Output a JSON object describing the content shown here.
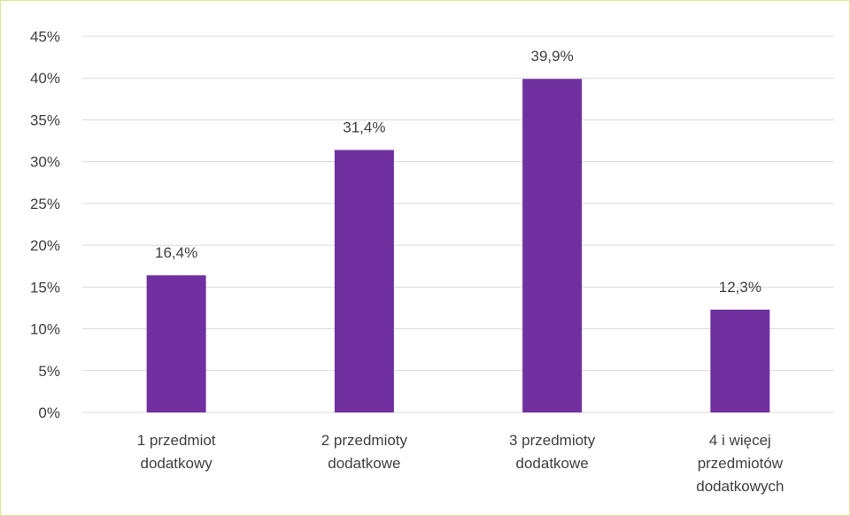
{
  "chart_data": {
    "type": "bar",
    "categories": [
      [
        "1 przedmiot",
        "dodatkowy"
      ],
      [
        "2 przedmioty",
        "dodatkowe"
      ],
      [
        "3 przedmioty",
        "dodatkowe"
      ],
      [
        "4 i więcej",
        "przedmiotów",
        "dodatkowych"
      ]
    ],
    "values": [
      16.4,
      31.4,
      39.9,
      12.3
    ],
    "data_labels": [
      "16,4%",
      "31,4%",
      "39,9%",
      "12,3%"
    ],
    "y_ticks": [
      {
        "value": 0,
        "label": "0%"
      },
      {
        "value": 5,
        "label": "5%"
      },
      {
        "value": 10,
        "label": "10%"
      },
      {
        "value": 15,
        "label": "15%"
      },
      {
        "value": 20,
        "label": "20%"
      },
      {
        "value": 25,
        "label": "25%"
      },
      {
        "value": 30,
        "label": "30%"
      },
      {
        "value": 35,
        "label": "35%"
      },
      {
        "value": 40,
        "label": "40%"
      },
      {
        "value": 45,
        "label": "45%"
      }
    ],
    "ylim": [
      0,
      45
    ],
    "title": "",
    "xlabel": "",
    "ylabel": "",
    "grid": true,
    "legend": "none",
    "colors": {
      "bar": "#7030a0",
      "grid": "#d9d9d9",
      "text": "#404040",
      "frame": "#dde69a"
    }
  }
}
